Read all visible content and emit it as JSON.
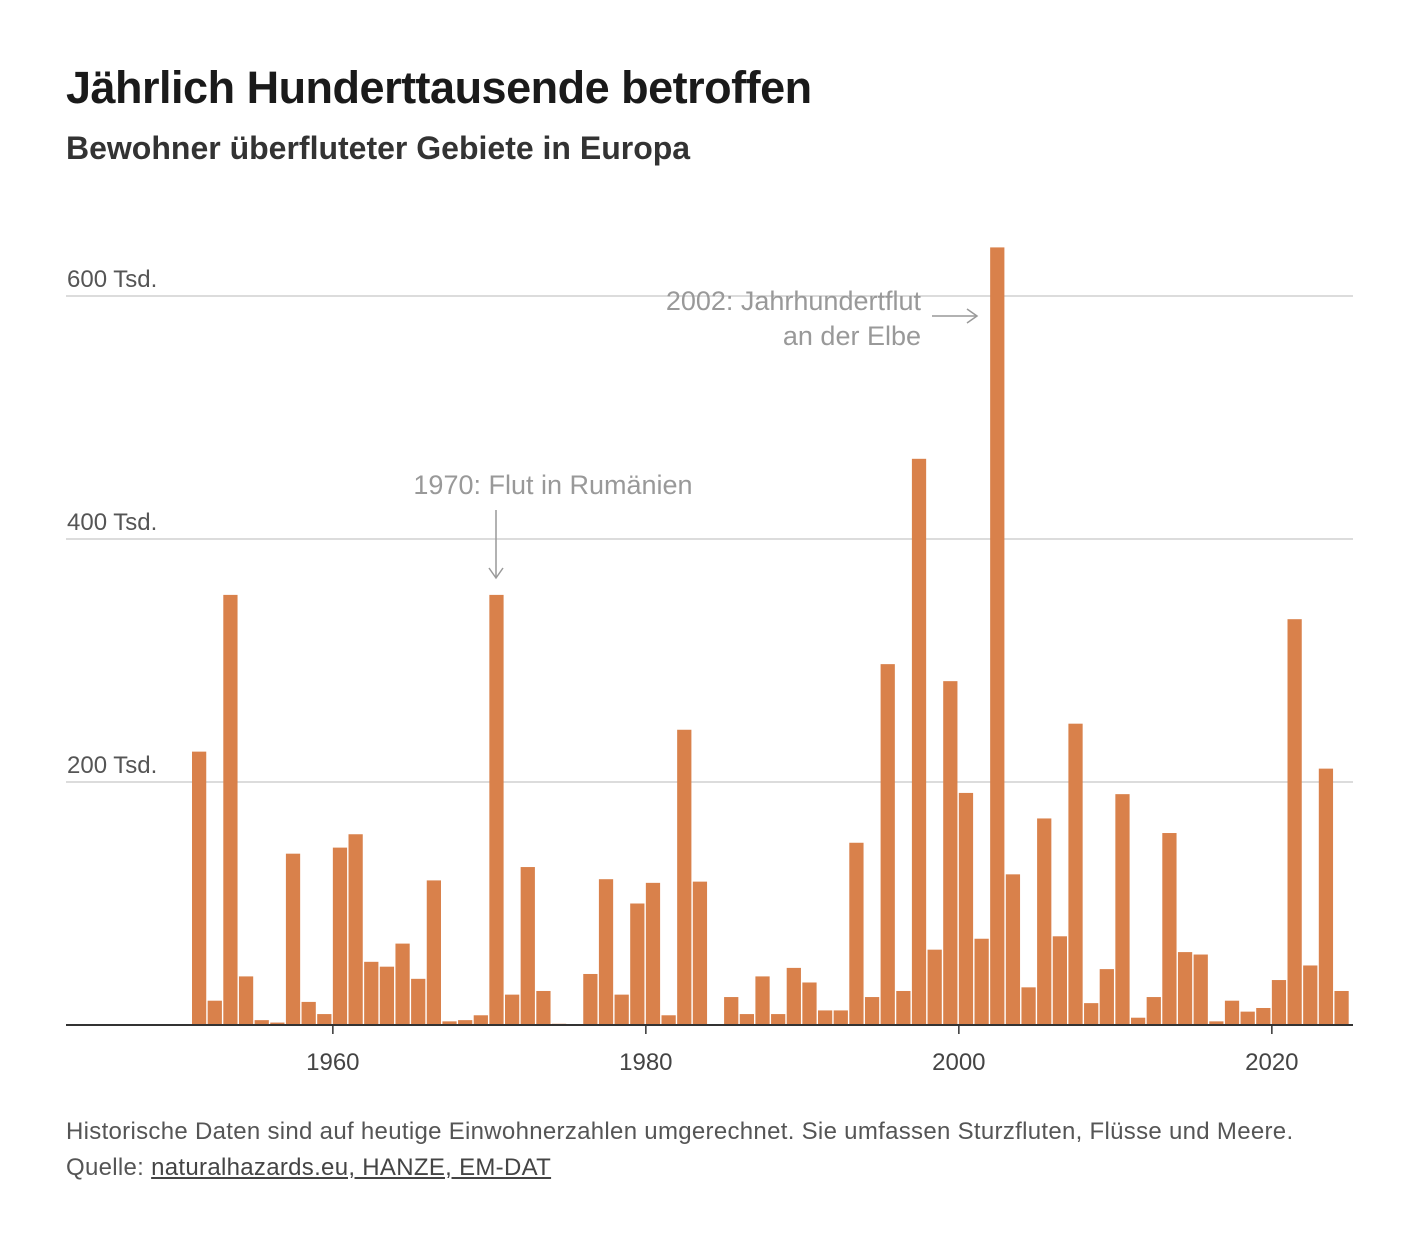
{
  "title": "Jährlich Hunderttausende betroffen",
  "subtitle": "Bewohner überfluteter Gebiete in Europa",
  "footnote": {
    "text": "Historische Daten sind auf heutige Einwohnerzahlen umgerechnet. Sie umfassen Sturzfluten, Flüsse und Meere. Quelle: ",
    "link_label": "naturalhazards.eu, HANZE, EM-DAT"
  },
  "colors": {
    "bar": "#d9814b",
    "grid": "#d0d0d0",
    "axis": "#333333",
    "annotation": "#999999"
  },
  "chart_data": {
    "type": "bar",
    "ylim": [
      0,
      600000
    ],
    "y_ticks": [
      {
        "value": 200000,
        "label": "200 Tsd."
      },
      {
        "value": 400000,
        "label": "400 Tsd."
      },
      {
        "value": 600000,
        "label": "600 Tsd."
      }
    ],
    "x_ticks": [
      {
        "value": 1960,
        "label": "1960"
      },
      {
        "value": 1980,
        "label": "1980"
      },
      {
        "value": 2000,
        "label": "2000"
      },
      {
        "value": 2020,
        "label": "2020"
      }
    ],
    "x": [
      1951,
      1952,
      1953,
      1954,
      1955,
      1956,
      1957,
      1958,
      1959,
      1960,
      1961,
      1962,
      1963,
      1964,
      1965,
      1966,
      1967,
      1968,
      1969,
      1970,
      1971,
      1972,
      1973,
      1974,
      1975,
      1976,
      1977,
      1978,
      1979,
      1980,
      1981,
      1982,
      1983,
      1984,
      1985,
      1986,
      1987,
      1988,
      1989,
      1990,
      1991,
      1992,
      1993,
      1994,
      1995,
      1996,
      1997,
      1998,
      1999,
      2000,
      2001,
      2002,
      2003,
      2004,
      2005,
      2006,
      2007,
      2008,
      2009,
      2010,
      2011,
      2012,
      2013,
      2014,
      2015,
      2016,
      2017,
      2018,
      2019,
      2020,
      2021,
      2022,
      2023,
      2024
    ],
    "values": [
      225000,
      20000,
      354000,
      40000,
      4000,
      2000,
      141000,
      19000,
      9000,
      146000,
      157000,
      52000,
      48000,
      67000,
      38000,
      119000,
      3000,
      4000,
      8000,
      354000,
      25000,
      130000,
      28000,
      1000,
      0,
      42000,
      120000,
      25000,
      100000,
      117000,
      8000,
      243000,
      118000,
      0,
      23000,
      9000,
      40000,
      9000,
      47000,
      35000,
      12000,
      12000,
      150000,
      23000,
      297000,
      28000,
      466000,
      62000,
      283000,
      191000,
      71000,
      640000,
      124000,
      31000,
      170000,
      73000,
      248000,
      18000,
      46000,
      190000,
      6000,
      23000,
      158000,
      60000,
      58000,
      3000,
      20000,
      11000,
      14000,
      37000,
      334000,
      49000,
      211000,
      28000
    ]
  },
  "annotations": [
    {
      "label": "1970: Flut in Rumänien"
    },
    {
      "line1": "2002: Jahrhundertflut",
      "line2": "an der Elbe"
    }
  ]
}
